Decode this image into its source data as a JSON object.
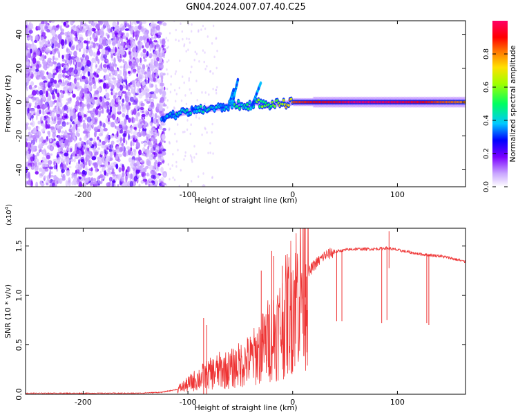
{
  "title": "GN04.2024.007.07.40.C25",
  "chart_data": [
    {
      "type": "heatmap",
      "xlabel": "Height of straight line (km)",
      "ylabel": "Frequency (Hz)",
      "xlim": [
        -255,
        165
      ],
      "ylim": [
        -50,
        48
      ],
      "xticks": [
        -200,
        -100,
        0,
        100
      ],
      "xtick_labels": [
        "-200",
        "-100",
        "0",
        "100"
      ],
      "yticks": [
        40,
        20,
        0,
        -20,
        -40
      ],
      "ytick_labels": [
        "40",
        "20",
        "0",
        "-20",
        "-40"
      ],
      "colorbar": {
        "label": "Normalized spectral amplitude",
        "range": [
          0,
          1
        ],
        "ticks": [
          0.0,
          0.2,
          0.4,
          0.6,
          0.8
        ],
        "tick_labels": [
          "0.0",
          "0.2",
          "0.4",
          "0.6",
          "0.8"
        ],
        "colormap": "white-purple-blue-cyan-green-yellow-red-magenta"
      },
      "ridge": {
        "x": [
          -125,
          -110,
          -95,
          -80,
          -65,
          -55,
          -45,
          -35,
          -25,
          -15,
          -5,
          0,
          20,
          40,
          60,
          80,
          100,
          120,
          140,
          165
        ],
        "y": [
          -9,
          -7,
          -5,
          -4,
          -3,
          -1,
          -3,
          0,
          -2,
          -1,
          -1,
          0,
          0,
          0,
          0,
          0,
          0,
          0,
          0,
          0
        ],
        "amplitude": [
          0.45,
          0.48,
          0.45,
          0.5,
          0.45,
          0.55,
          0.5,
          0.6,
          0.62,
          0.7,
          0.8,
          0.85,
          0.9,
          0.92,
          1.0,
          0.98,
          0.96,
          0.92,
          0.85,
          0.8
        ]
      }
    },
    {
      "type": "line",
      "xlabel": "Height of straight line (km)",
      "ylabel": "SNR (10 * v/v)",
      "yscale_label": "(x10",
      "yscale_exp": "4",
      "yscale_close": ")",
      "xlim": [
        -255,
        165
      ],
      "ylim": [
        0,
        1.68
      ],
      "xticks": [
        -200,
        -100,
        0,
        100
      ],
      "xtick_labels": [
        "-200",
        "-100",
        "0",
        "100"
      ],
      "yticks": [
        0.0,
        0.5,
        1.0,
        1.5
      ],
      "ytick_labels": [
        "0.0",
        "0.5",
        "1.0",
        "1.5"
      ],
      "color": "#ee3333",
      "series": [
        {
          "name": "SNR",
          "x": [
            -255,
            -200,
            -150,
            -125,
            -110,
            -100,
            -90,
            -80,
            -70,
            -60,
            -50,
            -40,
            -30,
            -20,
            -10,
            0,
            10,
            20,
            30,
            40,
            50,
            60,
            70,
            80,
            90,
            100,
            110,
            120,
            130,
            140,
            150,
            165
          ],
          "y": [
            0.01,
            0.01,
            0.01,
            0.02,
            0.05,
            0.1,
            0.16,
            0.2,
            0.24,
            0.25,
            0.3,
            0.35,
            0.45,
            0.6,
            0.7,
            0.95,
            1.15,
            1.3,
            1.4,
            1.44,
            1.46,
            1.47,
            1.47,
            1.47,
            1.48,
            1.46,
            1.44,
            1.42,
            1.41,
            1.4,
            1.38,
            1.34
          ],
          "dips": [
            {
              "x": 42,
              "y": 0.74
            },
            {
              "x": 47,
              "y": 0.74
            },
            {
              "x": 85,
              "y": 0.72
            },
            {
              "x": 90,
              "y": 0.75
            },
            {
              "x": 128,
              "y": 0.72
            },
            {
              "x": 130,
              "y": 0.7
            }
          ],
          "spikes": [
            {
              "x": -85,
              "y": 0.77
            },
            {
              "x": -82,
              "y": 0.7
            },
            {
              "x": -30,
              "y": 1.25
            },
            {
              "x": -20,
              "y": 1.45
            },
            {
              "x": -18,
              "y": 1.4
            },
            {
              "x": -10,
              "y": 1.3
            },
            {
              "x": 12,
              "y": 1.68
            },
            {
              "x": 92,
              "y": 1.65
            }
          ]
        }
      ]
    }
  ]
}
